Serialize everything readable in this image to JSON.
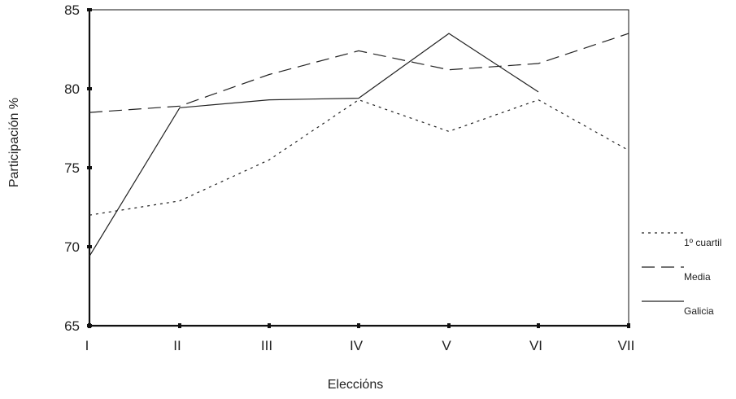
{
  "chart_data": {
    "type": "line",
    "title": "",
    "xlabel": "Elecciόns",
    "ylabel": "Participación %",
    "categories": [
      "I",
      "II",
      "III",
      "IV",
      "V",
      "VI",
      "VII"
    ],
    "ylim": [
      65,
      85
    ],
    "yticks": [
      "65",
      "70",
      "75",
      "80",
      "85"
    ],
    "grid": false,
    "legend_position": "right",
    "series": [
      {
        "name": "1º cuartil",
        "style": "dotted",
        "values": [
          72.0,
          72.9,
          75.5,
          79.3,
          77.3,
          79.3,
          76.1
        ]
      },
      {
        "name": "Media",
        "style": "dashed",
        "values": [
          78.5,
          78.9,
          80.9,
          82.4,
          81.2,
          81.6,
          83.5
        ]
      },
      {
        "name": "Galicia",
        "style": "solid",
        "values": [
          69.4,
          78.8,
          79.3,
          79.4,
          83.5,
          79.8,
          null
        ]
      }
    ],
    "colors": {
      "line": "#222222",
      "axis": "#111111"
    }
  }
}
